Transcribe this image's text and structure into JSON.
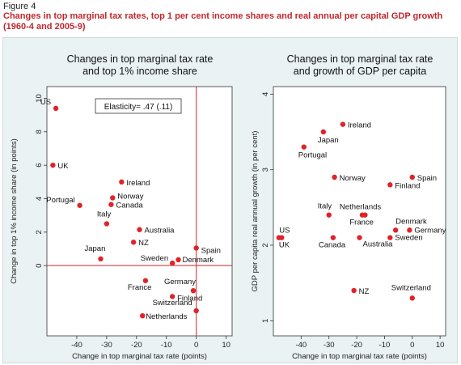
{
  "figure": {
    "label": "Figure 4",
    "title": "Changes in top marginal tax rates, top 1 per cent income shares and real annual per capital GDP growth (1960-4 and 2005-9)"
  },
  "colors": {
    "point": "#e0232a",
    "line": "#d9232b",
    "panel_bg": "#eaf2f3",
    "plot_bg": "#ffffff"
  },
  "chart_data": [
    {
      "type": "scatter",
      "title_lines": [
        "Changes in top marginal tax rate",
        "and top 1% income share"
      ],
      "xlabel": "Change in top marginal tax rate (points)",
      "ylabel": "Change in top 1% income share (in points)",
      "xlim": [
        -50,
        12
      ],
      "ylim": [
        -4.2,
        10.7
      ],
      "xticks": [
        -40,
        -30,
        -20,
        -10,
        0,
        10
      ],
      "yticks": [
        0,
        2,
        4,
        6,
        8,
        10
      ],
      "reference_lines": {
        "x": 0,
        "y": 0
      },
      "annotation": "Elasticity= .47 (.11)",
      "points": [
        {
          "label": "US",
          "x": -47,
          "y": 9.4
        },
        {
          "label": "UK",
          "x": -48,
          "y": 6.0
        },
        {
          "label": "Ireland",
          "x": -25,
          "y": 5.0
        },
        {
          "label": "Norway",
          "x": -28,
          "y": 4.05
        },
        {
          "label": "Canada",
          "x": -28.5,
          "y": 3.65
        },
        {
          "label": "Portugal",
          "x": -39,
          "y": 3.6
        },
        {
          "label": "Italy",
          "x": -30,
          "y": 2.5
        },
        {
          "label": "Australia",
          "x": -19,
          "y": 2.15
        },
        {
          "label": "NZ",
          "x": -21,
          "y": 1.4
        },
        {
          "label": "Spain",
          "x": 0,
          "y": 1.05
        },
        {
          "label": "Japan",
          "x": -32,
          "y": 0.4
        },
        {
          "label": "Sweden",
          "x": -8,
          "y": 0.15
        },
        {
          "label": "Denmark",
          "x": -6,
          "y": 0.35
        },
        {
          "label": "France",
          "x": -17,
          "y": -0.9
        },
        {
          "label": "Germany",
          "x": -1,
          "y": -1.5
        },
        {
          "label": "Finland",
          "x": -8,
          "y": -1.85
        },
        {
          "label": "Switzerland",
          "x": 0,
          "y": -2.7
        },
        {
          "label": "Netherlands",
          "x": -18,
          "y": -3.0
        }
      ]
    },
    {
      "type": "scatter",
      "title_lines": [
        "Changes in top marginal tax rate",
        "and growth of GDP per capita"
      ],
      "xlabel": "Change in top marginal tax rate (points)",
      "ylabel": "GDP per capita real annual growth (in per cent)",
      "xlim": [
        -50,
        12
      ],
      "ylim": [
        0.8,
        4.1
      ],
      "xticks": [
        -40,
        -30,
        -20,
        -10,
        0,
        10
      ],
      "yticks": [
        1,
        2,
        3,
        4
      ],
      "points": [
        {
          "label": "Ireland",
          "x": -25,
          "y": 3.6
        },
        {
          "label": "Japan",
          "x": -32,
          "y": 3.5
        },
        {
          "label": "Portugal",
          "x": -39,
          "y": 3.3
        },
        {
          "label": "Norway",
          "x": -28,
          "y": 2.9
        },
        {
          "label": "Spain",
          "x": 0,
          "y": 2.9
        },
        {
          "label": "Finland",
          "x": -8,
          "y": 2.8
        },
        {
          "label": "Italy",
          "x": -30,
          "y": 2.4
        },
        {
          "label": "Netherlands",
          "x": -18,
          "y": 2.4
        },
        {
          "label": "France",
          "x": -17,
          "y": 2.4
        },
        {
          "label": "US",
          "x": -47,
          "y": 2.1
        },
        {
          "label": "UK",
          "x": -48,
          "y": 2.1
        },
        {
          "label": "Canada",
          "x": -28.5,
          "y": 2.1
        },
        {
          "label": "Australia",
          "x": -19,
          "y": 2.1
        },
        {
          "label": "Sweden",
          "x": -8,
          "y": 2.1
        },
        {
          "label": "Denmark",
          "x": -6,
          "y": 2.2
        },
        {
          "label": "Germany",
          "x": -1,
          "y": 2.2
        },
        {
          "label": "NZ",
          "x": -21,
          "y": 1.4
        },
        {
          "label": "Switzerland",
          "x": 0,
          "y": 1.3
        }
      ]
    }
  ]
}
